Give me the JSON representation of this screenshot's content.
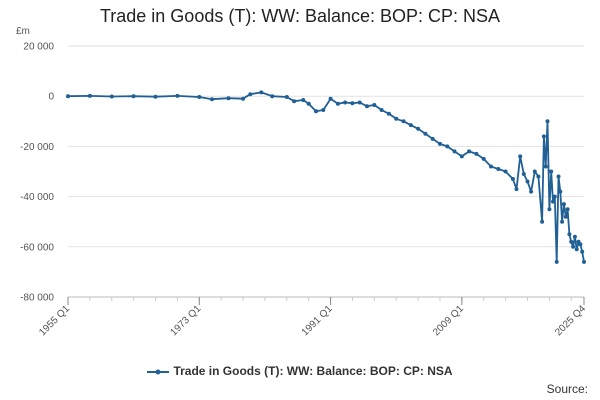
{
  "page": {
    "title": "Trade in Goods (T): WW: Balance: BOP: CP: NSA",
    "legend_label": "Trade in Goods (T): WW: Balance: BOP: CP: NSA",
    "source_label": "Source:"
  },
  "chart_data": {
    "type": "line",
    "title": "Trade in Goods (T): WW: Balance: BOP: CP: NSA",
    "unit_label": "£m",
    "ylim": [
      -80000,
      20000
    ],
    "y_ticks": [
      20000,
      0,
      -20000,
      -40000,
      -60000,
      -80000
    ],
    "y_tick_labels": [
      "20 000",
      "0",
      "-20 000",
      "-40 000",
      "-60 000",
      "-80 000"
    ],
    "x_ticks": [
      "1955 Q1",
      "1973 Q1",
      "1991 Q1",
      "2009 Q1",
      "2025 Q4"
    ],
    "grid": true,
    "legend_position": "bottom",
    "color": "#206095",
    "series": [
      {
        "name": "Trade in Goods (T): WW: Balance: BOP: CP: NSA",
        "points": [
          [
            "1955 Q1",
            0
          ],
          [
            "1958 Q1",
            100
          ],
          [
            "1961 Q1",
            -100
          ],
          [
            "1964 Q1",
            0
          ],
          [
            "1967 Q1",
            -200
          ],
          [
            "1970 Q1",
            100
          ],
          [
            "1973 Q1",
            -300
          ],
          [
            "1974 Q4",
            -1200
          ],
          [
            "1977 Q1",
            -800
          ],
          [
            "1979 Q1",
            -1000
          ],
          [
            "1980 Q1",
            800
          ],
          [
            "1981 Q3",
            1500
          ],
          [
            "1983 Q1",
            0
          ],
          [
            "1985 Q1",
            -300
          ],
          [
            "1986 Q1",
            -2000
          ],
          [
            "1987 Q2",
            -1500
          ],
          [
            "1988 Q1",
            -3000
          ],
          [
            "1989 Q1",
            -6000
          ],
          [
            "1990 Q1",
            -5500
          ],
          [
            "1991 Q1",
            -1000
          ],
          [
            "1992 Q1",
            -3000
          ],
          [
            "1993 Q1",
            -2500
          ],
          [
            "1994 Q1",
            -2800
          ],
          [
            "1995 Q1",
            -2500
          ],
          [
            "1996 Q1",
            -4000
          ],
          [
            "1997 Q1",
            -3500
          ],
          [
            "1998 Q1",
            -5500
          ],
          [
            "1999 Q1",
            -7000
          ],
          [
            "2000 Q1",
            -9000
          ],
          [
            "2001 Q1",
            -10000
          ],
          [
            "2002 Q1",
            -11500
          ],
          [
            "2003 Q1",
            -13000
          ],
          [
            "2004 Q1",
            -15000
          ],
          [
            "2005 Q1",
            -17000
          ],
          [
            "2006 Q1",
            -19000
          ],
          [
            "2007 Q1",
            -20000
          ],
          [
            "2008 Q1",
            -22000
          ],
          [
            "2009 Q1",
            -24000
          ],
          [
            "2010 Q1",
            -22000
          ],
          [
            "2011 Q1",
            -23000
          ],
          [
            "2012 Q1",
            -25000
          ],
          [
            "2013 Q1",
            -28000
          ],
          [
            "2014 Q1",
            -29000
          ],
          [
            "2015 Q1",
            -30000
          ],
          [
            "2016 Q1",
            -33000
          ],
          [
            "2016 Q3",
            -37000
          ],
          [
            "2017 Q1",
            -24000
          ],
          [
            "2017 Q3",
            -31000
          ],
          [
            "2018 Q1",
            -34000
          ],
          [
            "2018 Q3",
            -38000
          ],
          [
            "2019 Q1",
            -30000
          ],
          [
            "2019 Q3",
            -32000
          ],
          [
            "2020 Q1",
            -50000
          ],
          [
            "2020 Q2",
            -16000
          ],
          [
            "2020 Q3",
            -28000
          ],
          [
            "2020 Q4",
            -10000
          ],
          [
            "2021 Q1",
            -45000
          ],
          [
            "2021 Q2",
            -30000
          ],
          [
            "2021 Q3",
            -42000
          ],
          [
            "2021 Q4",
            -40000
          ],
          [
            "2022 Q1",
            -66000
          ],
          [
            "2022 Q2",
            -32000
          ],
          [
            "2022 Q3",
            -38000
          ],
          [
            "2022 Q4",
            -50000
          ],
          [
            "2023 Q1",
            -43000
          ],
          [
            "2023 Q2",
            -48000
          ],
          [
            "2023 Q3",
            -45000
          ],
          [
            "2023 Q4",
            -55000
          ],
          [
            "2024 Q1",
            -58000
          ],
          [
            "2024 Q2",
            -60000
          ],
          [
            "2024 Q3",
            -56000
          ],
          [
            "2024 Q4",
            -61000
          ],
          [
            "2025 Q1",
            -58000
          ],
          [
            "2025 Q2",
            -59000
          ],
          [
            "2025 Q3",
            -62000
          ],
          [
            "2025 Q4",
            -66000
          ]
        ]
      }
    ]
  }
}
